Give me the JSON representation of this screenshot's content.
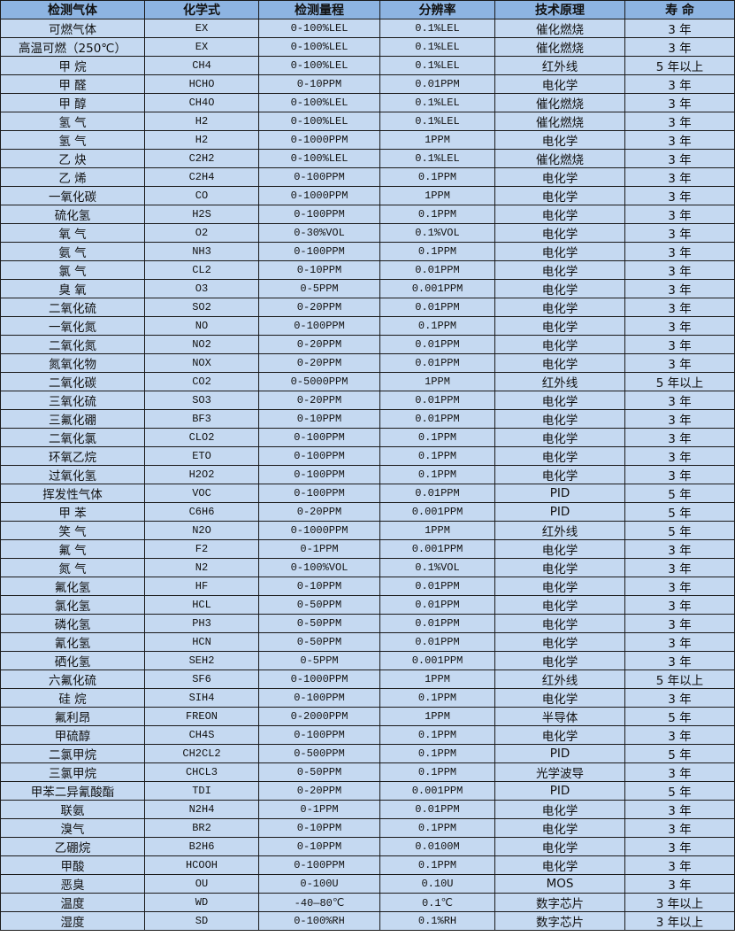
{
  "colors": {
    "header_bg": "#8db4e2",
    "row_bg": "#c5d9f1",
    "border": "#1a1a1a"
  },
  "table": {
    "headers": [
      "检测气体",
      "化学式",
      "检测量程",
      "分辨率",
      "技术原理",
      "寿 命"
    ],
    "rows": [
      [
        "可燃气体",
        "EX",
        "0-100%LEL",
        "0.1%LEL",
        "催化燃烧",
        "3 年"
      ],
      [
        "高温可燃（250℃）",
        "EX",
        "0-100%LEL",
        "0.1%LEL",
        "催化燃烧",
        "3 年"
      ],
      [
        "甲 烷",
        "CH4",
        "0-100%LEL",
        "0.1%LEL",
        "红外线",
        "5 年以上"
      ],
      [
        "甲 醛",
        "HCHO",
        "0-10PPM",
        "0.01PPM",
        "电化学",
        "3 年"
      ],
      [
        "甲 醇",
        "CH4O",
        "0-100%LEL",
        "0.1%LEL",
        "催化燃烧",
        "3 年"
      ],
      [
        "氢 气",
        "H2",
        "0-100%LEL",
        "0.1%LEL",
        "催化燃烧",
        "3 年"
      ],
      [
        "氢 气",
        "H2",
        "0-1000PPM",
        "1PPM",
        "电化学",
        "3 年"
      ],
      [
        "乙 炔",
        "C2H2",
        "0-100%LEL",
        "0.1%LEL",
        "催化燃烧",
        "3 年"
      ],
      [
        "乙 烯",
        "C2H4",
        "0-100PPM",
        "0.1PPM",
        "电化学",
        "3 年"
      ],
      [
        "一氧化碳",
        "CO",
        "0-1000PPM",
        "1PPM",
        "电化学",
        "3 年"
      ],
      [
        "硫化氢",
        "H2S",
        "0-100PPM",
        "0.1PPM",
        "电化学",
        "3 年"
      ],
      [
        "氧 气",
        "O2",
        "0-30%VOL",
        "0.1%VOL",
        "电化学",
        "3 年"
      ],
      [
        "氨 气",
        "NH3",
        "0-100PPM",
        "0.1PPM",
        "电化学",
        "3 年"
      ],
      [
        "氯 气",
        "CL2",
        "0-10PPM",
        "0.01PPM",
        "电化学",
        "3 年"
      ],
      [
        "臭 氧",
        "O3",
        "0-5PPM",
        "0.001PPM",
        "电化学",
        "3 年"
      ],
      [
        "二氧化硫",
        "SO2",
        "0-20PPM",
        "0.01PPM",
        "电化学",
        "3 年"
      ],
      [
        "一氧化氮",
        "NO",
        "0-100PPM",
        "0.1PPM",
        "电化学",
        "3 年"
      ],
      [
        "二氧化氮",
        "NO2",
        "0-20PPM",
        "0.01PPM",
        "电化学",
        "3 年"
      ],
      [
        "氮氧化物",
        "NOX",
        "0-20PPM",
        "0.01PPM",
        "电化学",
        "3 年"
      ],
      [
        "二氧化碳",
        "CO2",
        "0-5000PPM",
        "1PPM",
        "红外线",
        "5 年以上"
      ],
      [
        "三氧化硫",
        "SO3",
        "0-20PPM",
        "0.01PPM",
        "电化学",
        "3 年"
      ],
      [
        "三氟化硼",
        "BF3",
        "0-10PPM",
        "0.01PPM",
        "电化学",
        "3 年"
      ],
      [
        "二氧化氯",
        "CLO2",
        "0-100PPM",
        "0.1PPM",
        "电化学",
        "3 年"
      ],
      [
        "环氧乙烷",
        "ETO",
        "0-100PPM",
        "0.1PPM",
        "电化学",
        "3 年"
      ],
      [
        "过氧化氢",
        "H2O2",
        "0-100PPM",
        "0.1PPM",
        "电化学",
        "3 年"
      ],
      [
        "挥发性气体",
        "VOC",
        "0-100PPM",
        "0.01PPM",
        "PID",
        "5 年"
      ],
      [
        "甲 苯",
        "C6H6",
        "0-20PPM",
        "0.001PPM",
        "PID",
        "5 年"
      ],
      [
        "笑 气",
        "N2O",
        "0-1000PPM",
        "1PPM",
        "红外线",
        "5 年"
      ],
      [
        "氟 气",
        "F2",
        "0-1PPM",
        "0.001PPM",
        "电化学",
        "3 年"
      ],
      [
        "氮 气",
        "N2",
        "0-100%VOL",
        "0.1%VOL",
        "电化学",
        "3 年"
      ],
      [
        "氟化氢",
        "HF",
        "0-10PPM",
        "0.01PPM",
        "电化学",
        "3 年"
      ],
      [
        "氯化氢",
        "HCL",
        "0-50PPM",
        "0.01PPM",
        "电化学",
        "3 年"
      ],
      [
        "磷化氢",
        "PH3",
        "0-50PPM",
        "0.01PPM",
        "电化学",
        "3 年"
      ],
      [
        "氰化氢",
        "HCN",
        "0-50PPM",
        "0.01PPM",
        "电化学",
        "3 年"
      ],
      [
        "硒化氢",
        "SEH2",
        "0-5PPM",
        "0.001PPM",
        "电化学",
        "3 年"
      ],
      [
        "六氟化硫",
        "SF6",
        "0-1000PPM",
        "1PPM",
        "红外线",
        "5 年以上"
      ],
      [
        "硅 烷",
        "SIH4",
        "0-100PPM",
        "0.1PPM",
        "电化学",
        "3 年"
      ],
      [
        "氟利昂",
        "FREON",
        "0-2000PPM",
        "1PPM",
        "半导体",
        "5 年"
      ],
      [
        "甲硫醇",
        "CH4S",
        "0-100PPM",
        "0.1PPM",
        "电化学",
        "3 年"
      ],
      [
        "二氯甲烷",
        "CH2CL2",
        "0-500PPM",
        "0.1PPM",
        "PID",
        "5 年"
      ],
      [
        "三氯甲烷",
        "CHCL3",
        "0-50PPM",
        "0.1PPM",
        "光学波导",
        "3 年"
      ],
      [
        "甲苯二异氰酸酯",
        "TDI",
        "0-20PPM",
        "0.001PPM",
        "PID",
        "5 年"
      ],
      [
        "联氨",
        "N2H4",
        "0-1PPM",
        "0.01PPM",
        "电化学",
        "3 年"
      ],
      [
        "溴气",
        "BR2",
        "0-10PPM",
        "0.1PPM",
        "电化学",
        "3 年"
      ],
      [
        "乙硼烷",
        "B2H6",
        "0-10PPM",
        "0.0100M",
        "电化学",
        "3 年"
      ],
      [
        "甲酸",
        "HCOOH",
        "0-100PPM",
        "0.1PPM",
        "电化学",
        "3 年"
      ],
      [
        "恶臭",
        "OU",
        "0-100U",
        "0.10U",
        "MOS",
        "3 年"
      ],
      [
        "温度",
        "WD",
        "-40—80℃",
        "0.1℃",
        "数字芯片",
        "3 年以上"
      ],
      [
        "湿度",
        "SD",
        "0-100%RH",
        "0.1%RH",
        "数字芯片",
        "3 年以上"
      ]
    ]
  }
}
